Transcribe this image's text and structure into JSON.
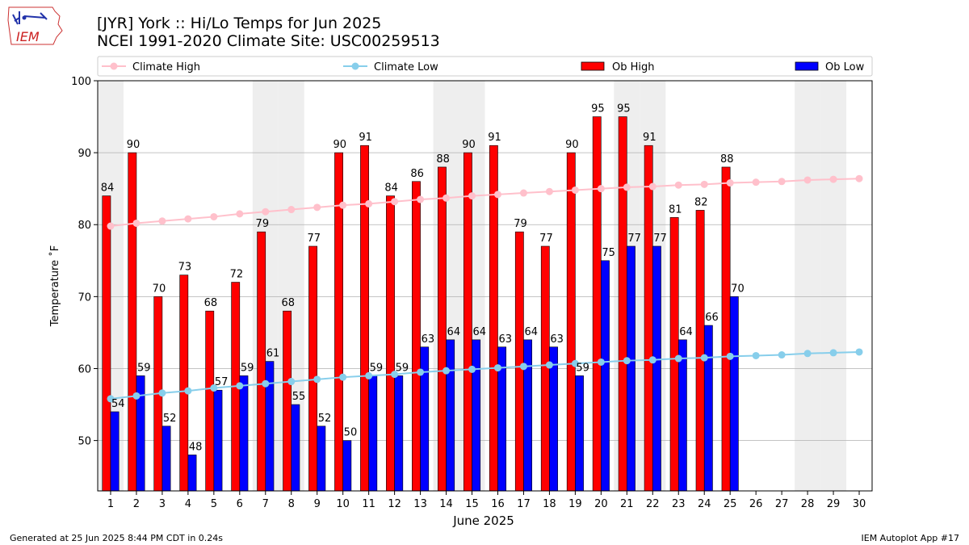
{
  "header": {
    "logo_text": "IEM",
    "title_line1": "[JYR] York :: Hi/Lo Temps for Jun 2025",
    "title_line2": "NCEI 1991-2020 Climate Site: USC00259513"
  },
  "footer": {
    "generated": "Generated at 25 Jun 2025 8:44 PM CDT in 0.24s",
    "app": "IEM Autoplot App #17"
  },
  "colors": {
    "ob_high": "#ff0000",
    "ob_low": "#0000ff",
    "climate_high": "#ffc0cb",
    "climate_low": "#87ceeb",
    "weekend_band": "#eeeeee",
    "grid": "#b0b0b0"
  },
  "chart_data": {
    "type": "bar",
    "xlabel": "June 2025",
    "ylabel": "Temperature ˚F",
    "ylim": [
      43,
      100
    ],
    "yticks": [
      50,
      60,
      70,
      80,
      90,
      100
    ],
    "grid": "horizontal",
    "legend_position": "top",
    "days": [
      1,
      2,
      3,
      4,
      5,
      6,
      7,
      8,
      9,
      10,
      11,
      12,
      13,
      14,
      15,
      16,
      17,
      18,
      19,
      20,
      21,
      22,
      23,
      24,
      25,
      26,
      27,
      28,
      29,
      30
    ],
    "shaded_days": [
      1,
      7,
      8,
      14,
      15,
      21,
      22,
      28,
      29
    ],
    "series": [
      {
        "name": "Climate High",
        "kind": "line",
        "values": [
          79.8,
          80.2,
          80.5,
          80.8,
          81.1,
          81.5,
          81.8,
          82.1,
          82.4,
          82.7,
          82.9,
          83.2,
          83.5,
          83.7,
          84.0,
          84.2,
          84.4,
          84.6,
          84.8,
          85.0,
          85.2,
          85.3,
          85.5,
          85.6,
          85.8,
          85.9,
          86.0,
          86.2,
          86.3,
          86.4
        ]
      },
      {
        "name": "Climate Low",
        "kind": "line",
        "values": [
          55.8,
          56.2,
          56.6,
          56.9,
          57.3,
          57.6,
          57.9,
          58.2,
          58.5,
          58.8,
          59.0,
          59.2,
          59.5,
          59.7,
          59.9,
          60.1,
          60.3,
          60.5,
          60.7,
          60.9,
          61.1,
          61.2,
          61.4,
          61.5,
          61.7,
          61.8,
          61.9,
          62.1,
          62.2,
          62.3
        ]
      },
      {
        "name": "Ob High",
        "kind": "bar",
        "values": [
          84,
          90,
          70,
          73,
          68,
          72,
          79,
          68,
          77,
          90,
          91,
          84,
          86,
          88,
          90,
          91,
          79,
          77,
          90,
          95,
          95,
          91,
          81,
          82,
          88
        ]
      },
      {
        "name": "Ob Low",
        "kind": "bar",
        "values": [
          54,
          59,
          52,
          48,
          57,
          59,
          61,
          55,
          52,
          50,
          59,
          59,
          63,
          64,
          64,
          63,
          64,
          63,
          59,
          75,
          77,
          77,
          64,
          66,
          70
        ]
      }
    ]
  }
}
